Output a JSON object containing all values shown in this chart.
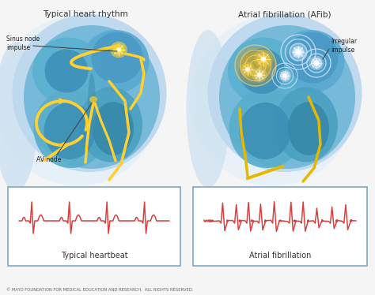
{
  "bg_color": "#f5f5f5",
  "left_title": "Typical heart rhythm",
  "right_title": "Atrial fibrillation (AFib)",
  "left_ecg_label": "Typical heartbeat",
  "right_ecg_label": "Atrial fibrillation",
  "left_label_1": "Sinus node\nimpulse",
  "left_label_2": "AV node",
  "right_label_1": "Irregular\nimpulse",
  "footer": "© MAYO FOUNDATION FOR MEDICAL EDUCATION AND RESEARCH.  ALL RIGHTS RESERVED.",
  "ecg_color": "#d94040",
  "ecg_box_edge": "#7ba8c4",
  "ecg_box_face": "#ffffff",
  "heart_outer": "#c8dff0",
  "heart_mid": "#6aaecc",
  "heart_dark": "#3d7fab",
  "heart_darker": "#2a6090",
  "yellow_path": "#f0c020",
  "yellow_glow": "#ffd030",
  "ripple_color": "#b8d8f8",
  "body_color": "#daeaf5"
}
